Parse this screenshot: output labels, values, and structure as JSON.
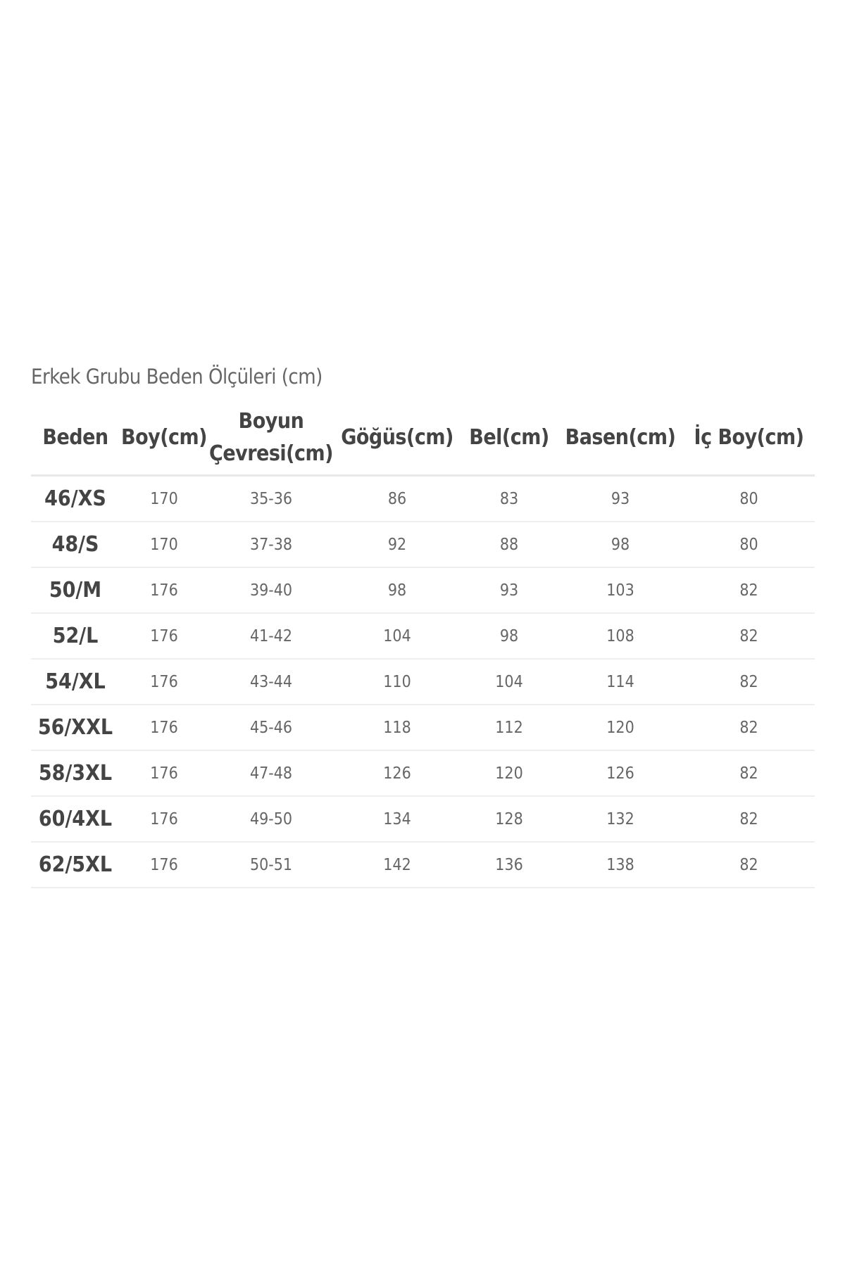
{
  "title": "Erkek Grubu Beden Ölçüleri (cm)",
  "headers": [
    "Beden",
    "Boy(cm)",
    "Boyun Çevresi(cm)",
    "Göğüs(cm)",
    "Bel(cm)",
    "Basen(cm)",
    "İç Boy(cm)"
  ],
  "rows": [
    [
      "46/XS",
      "170",
      "35-36",
      "86",
      "83",
      "93",
      "80"
    ],
    [
      "48/S",
      "170",
      "37-38",
      "92",
      "88",
      "98",
      "80"
    ],
    [
      "50/M",
      "176",
      "39-40",
      "98",
      "93",
      "103",
      "82"
    ],
    [
      "52/L",
      "176",
      "41-42",
      "104",
      "98",
      "108",
      "82"
    ],
    [
      "54/XL",
      "176",
      "43-44",
      "110",
      "104",
      "114",
      "82"
    ],
    [
      "56/XXL",
      "176",
      "45-46",
      "118",
      "112",
      "120",
      "82"
    ],
    [
      "58/3XL",
      "176",
      "47-48",
      "126",
      "120",
      "126",
      "82"
    ],
    [
      "60/4XL",
      "176",
      "49-50",
      "134",
      "128",
      "132",
      "82"
    ],
    [
      "62/5XL",
      "176",
      "50-51",
      "142",
      "136",
      "138",
      "82"
    ]
  ]
}
